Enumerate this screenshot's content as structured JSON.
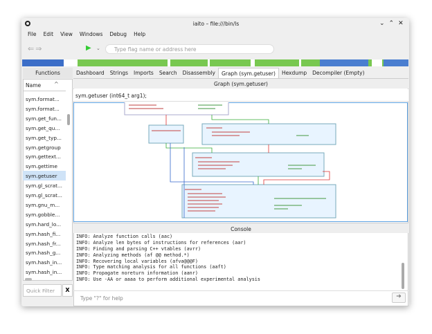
{
  "window": {
    "title": "iaito – file:///bin/ls"
  },
  "menu": [
    "File",
    "Edit",
    "View",
    "Windows",
    "Debug",
    "Help"
  ],
  "toolbar": {
    "search_placeholder": "Type flag name or address here"
  },
  "functions_panel": {
    "title": "Functions",
    "column": "Name",
    "items": [
      "sym.format...",
      "sym.format...",
      "sym.get_fun...",
      "sym.get_qu...",
      "sym.get_typ...",
      "sym.getgroup",
      "sym.gettext...",
      "sym.gettime",
      "sym.getuser",
      "sym.gl_scrat...",
      "sym.gl_scrat...",
      "sym.gnu_m...",
      "sym.gobble...",
      "sym.hard_lo...",
      "sym.hash_fi...",
      "sym.hash_fr...",
      "sym.hash_g...",
      "sym.hash_in...",
      "sym.hash_in..."
    ],
    "selected": 8,
    "filter_placeholder": "Quick Filter",
    "clear_button": "X"
  },
  "tabs": {
    "items": [
      "Dashboard",
      "Strings",
      "Imports",
      "Search",
      "Disassembly",
      "Graph (sym.getuser)",
      "Hexdump",
      "Decompiler (Empty)"
    ],
    "active": 5
  },
  "graph": {
    "title": "Graph (sym.getuser)",
    "signature": "sym.getuser (int64_t arg1);"
  },
  "console": {
    "title": "Console",
    "lines": [
      "INFO: Analyze function calls (aac)",
      "INFO: Analyze len bytes of instructions for references (aar)",
      "INFO: Finding and parsing C++ vtables (avrr)",
      "INFO: Analyzing methods (af @@ method.*)",
      "INFO: Recovering local variables (afva@@@F)",
      "INFO: Type matching analysis for all functions (aaft)",
      "INFO: Propagate noreturn information (aanr)",
      "INFO: Use -AA or aaaa to perform additional experimental analysis"
    ],
    "input_placeholder": "Type \"?\" for help"
  }
}
